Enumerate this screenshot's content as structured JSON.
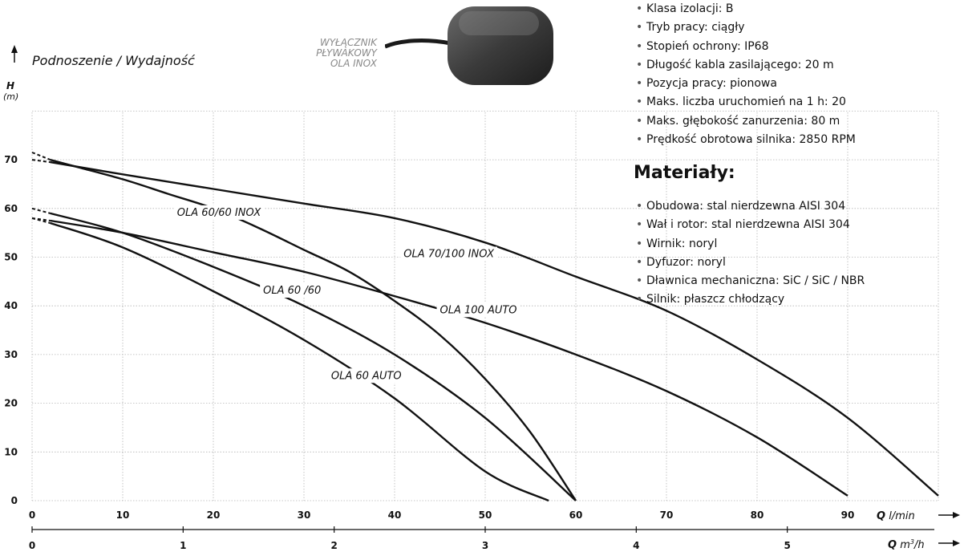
{
  "switch": {
    "caption_lines": [
      "WYŁĄCZNIK",
      "PŁYWAKOWY",
      "OLA INOX"
    ]
  },
  "specs": {
    "items": [
      "Klasa izolacji: B",
      "Tryb pracy: ciągły",
      "Stopień ochrony: IP68",
      "Długość kabla zasilającego: 20 m",
      "Pozycja pracy: pionowa",
      "Maks. liczba uruchomień na 1 h: 20",
      "Maks. głębokość zanurzenia: 80 m",
      "Prędkość obrotowa silnika: 2850 RPM"
    ]
  },
  "materials": {
    "heading": "Materiały:",
    "items": [
      "Obudowa: stal nierdzewna AISI 304",
      "Wał i rotor: stal nierdzewna AISI 304",
      "Wirnik: noryl",
      "Dyfuzor: noryl",
      "Dławnica mechaniczna: SiC / SiC / NBR",
      "Silnik: płaszcz chłodzący"
    ]
  },
  "chart_data": {
    "type": "line",
    "title": "Podnoszenie / Wydajność",
    "ylabel": "H",
    "yunit": "(m)",
    "xlabel": "Q",
    "xunit": "l/min",
    "x2label": "Q",
    "x2unit": "m3/h",
    "xlim": [
      0,
      100
    ],
    "ylim": [
      0,
      80
    ],
    "x_ticks": [
      0,
      10,
      20,
      30,
      40,
      50,
      60,
      70,
      80,
      90
    ],
    "y_ticks": [
      0,
      10,
      20,
      30,
      40,
      50,
      60,
      70
    ],
    "x2_ticks": [
      0,
      1,
      2,
      3,
      4,
      5
    ],
    "grid": true,
    "series": [
      {
        "name": "OLA 70/100 INOX",
        "dashed_start": [
          [
            0,
            70
          ],
          [
            2,
            69.5
          ]
        ],
        "x": [
          2,
          10,
          20,
          30,
          40,
          50,
          60,
          70,
          80,
          90,
          100
        ],
        "y": [
          69.5,
          67,
          64,
          61,
          58,
          53,
          46,
          39,
          29,
          17,
          1
        ]
      },
      {
        "name": "OLA 60/60 INOX",
        "dashed_start": [
          [
            0,
            71.5
          ],
          [
            2,
            70
          ]
        ],
        "x": [
          2,
          5,
          10,
          15,
          20,
          25,
          30,
          35,
          40,
          45,
          50,
          55,
          60
        ],
        "y": [
          70,
          68.5,
          66,
          63,
          60,
          56,
          51.5,
          47,
          41,
          34,
          25,
          14,
          0
        ]
      },
      {
        "name": "OLA 100 AUTO",
        "dashed_start": [
          [
            0,
            58
          ],
          [
            2,
            57.5
          ]
        ],
        "x": [
          2,
          10,
          20,
          30,
          40,
          50,
          60,
          70,
          80,
          90
        ],
        "y": [
          57.5,
          55,
          51,
          47,
          42,
          36.5,
          30,
          22.5,
          13,
          1
        ]
      },
      {
        "name": "OLA 60 /60",
        "dashed_start": [
          [
            0,
            60
          ],
          [
            2,
            59
          ]
        ],
        "x": [
          2,
          10,
          20,
          30,
          40,
          50,
          60
        ],
        "y": [
          59,
          55,
          48,
          40,
          30,
          17,
          0
        ]
      },
      {
        "name": "OLA 60 AUTO",
        "dashed_start": [
          [
            0,
            58
          ],
          [
            2,
            57
          ]
        ],
        "x": [
          2,
          10,
          20,
          30,
          40,
          50,
          57
        ],
        "y": [
          57,
          52,
          43,
          33,
          21,
          6,
          0
        ]
      }
    ]
  }
}
